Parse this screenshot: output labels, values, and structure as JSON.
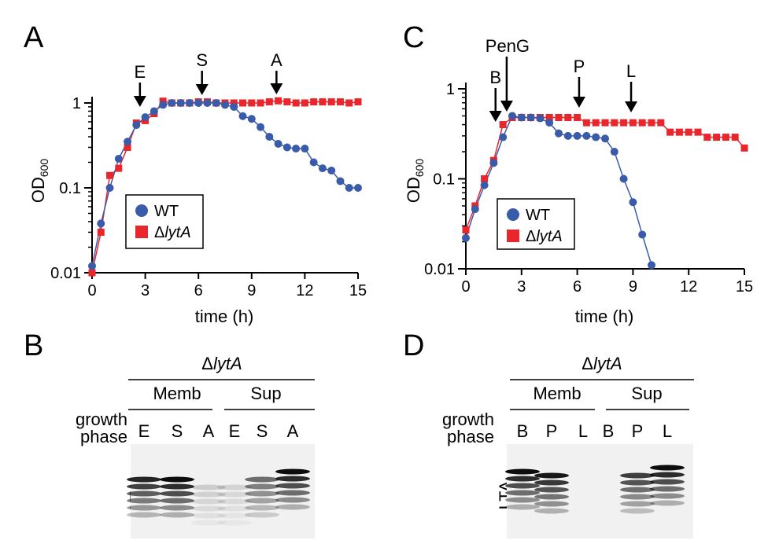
{
  "panels": {
    "A": "A",
    "B": "B",
    "C": "C",
    "D": "D"
  },
  "colors": {
    "wt": "#3a5ba9",
    "lyta": "#e8262b"
  },
  "chart_data": [
    {
      "panel": "A",
      "type": "line",
      "xlabel": "time (h)",
      "ylabel": "OD600",
      "ylabel_main": "OD",
      "ylabel_sub": "600",
      "yscale": "log",
      "xlim": [
        0,
        15
      ],
      "ylim": [
        0.01,
        1
      ],
      "xticks": [
        0,
        3,
        6,
        9,
        12,
        15
      ],
      "xtick_labels": [
        "0",
        "3",
        "6",
        "9",
        "12",
        "15"
      ],
      "yticks": [
        0.01,
        0.1,
        1
      ],
      "ytick_labels": [
        "0.01",
        "0.1",
        "1"
      ],
      "legend": {
        "position": "lower-center",
        "entries": [
          "WT",
          "ΔlytA"
        ]
      },
      "series": [
        {
          "name": "WT",
          "marker": "circle",
          "color": "#3a5ba9",
          "x": [
            0,
            0.5,
            1,
            1.5,
            2,
            2.5,
            3,
            3.5,
            4,
            4.5,
            5,
            5.5,
            6,
            6.5,
            7,
            7.5,
            8,
            8.5,
            9,
            9.5,
            10,
            10.5,
            11,
            11.5,
            12,
            12.5,
            13,
            13.5,
            14,
            14.5,
            15
          ],
          "values": [
            0.012,
            0.038,
            0.1,
            0.22,
            0.35,
            0.55,
            0.68,
            0.8,
            0.95,
            1.0,
            1.0,
            1.0,
            1.0,
            1.0,
            1.0,
            0.95,
            0.9,
            0.7,
            0.65,
            0.52,
            0.4,
            0.33,
            0.3,
            0.29,
            0.29,
            0.2,
            0.17,
            0.16,
            0.12,
            0.1,
            0.1
          ]
        },
        {
          "name": "ΔlytA",
          "marker": "square",
          "color": "#e8262b",
          "x": [
            0,
            0.5,
            1,
            1.5,
            2,
            2.5,
            3,
            3.5,
            4,
            4.5,
            5,
            5.5,
            6,
            6.5,
            7,
            7.5,
            8,
            8.5,
            9,
            9.5,
            10,
            10.5,
            11,
            11.5,
            12,
            12.5,
            13,
            13.5,
            14,
            14.5,
            15
          ],
          "values": [
            0.01,
            0.03,
            0.14,
            0.17,
            0.3,
            0.58,
            0.62,
            0.75,
            1.05,
            1.0,
            1.0,
            1.0,
            1.03,
            1.03,
            1.0,
            1.0,
            1.0,
            1.0,
            1.0,
            1.0,
            1.03,
            1.06,
            1.03,
            1.0,
            1.0,
            1.03,
            1.03,
            1.03,
            1.03,
            1.0,
            1.03
          ]
        }
      ],
      "annotations": [
        {
          "label": "E",
          "x": 2.7
        },
        {
          "label": "S",
          "x": 6.2
        },
        {
          "label": "A",
          "x": 10.4
        }
      ]
    },
    {
      "panel": "C",
      "type": "line",
      "xlabel": "time (h)",
      "ylabel": "OD600",
      "ylabel_main": "OD",
      "ylabel_sub": "600",
      "yscale": "log",
      "xlim": [
        0,
        15
      ],
      "ylim": [
        0.01,
        1
      ],
      "xticks": [
        0,
        3,
        6,
        9,
        12,
        15
      ],
      "xtick_labels": [
        "0",
        "3",
        "6",
        "9",
        "12",
        "15"
      ],
      "yticks": [
        0.01,
        0.1,
        1
      ],
      "ytick_labels": [
        "0.01",
        "0.1",
        "1"
      ],
      "legend": {
        "position": "lower-center",
        "entries": [
          "WT",
          "ΔlytA"
        ]
      },
      "series": [
        {
          "name": "WT",
          "marker": "circle",
          "color": "#3a5ba9",
          "x": [
            0,
            0.5,
            1,
            1.5,
            2,
            2.5,
            3,
            3.5,
            4,
            4.5,
            5,
            5.5,
            6,
            6.5,
            7,
            7.5,
            8,
            8.5,
            9,
            9.5,
            10
          ],
          "values": [
            0.022,
            0.046,
            0.085,
            0.15,
            0.29,
            0.5,
            0.48,
            0.48,
            0.47,
            0.42,
            0.32,
            0.3,
            0.3,
            0.3,
            0.29,
            0.28,
            0.2,
            0.1,
            0.055,
            0.024,
            0.011
          ]
        },
        {
          "name": "ΔlytA",
          "marker": "square",
          "color": "#e8262b",
          "x": [
            0,
            0.5,
            1,
            1.5,
            2,
            2.5,
            3,
            3.5,
            4,
            4.5,
            5,
            5.5,
            6,
            6.5,
            7,
            7.5,
            8,
            8.5,
            9,
            9.5,
            10,
            10.5,
            11,
            11.5,
            12,
            12.5,
            13,
            13.5,
            14,
            14.5,
            15
          ],
          "values": [
            0.027,
            0.05,
            0.1,
            0.16,
            0.4,
            0.48,
            0.48,
            0.48,
            0.48,
            0.48,
            0.48,
            0.48,
            0.48,
            0.42,
            0.42,
            0.42,
            0.42,
            0.42,
            0.42,
            0.42,
            0.42,
            0.42,
            0.33,
            0.33,
            0.33,
            0.33,
            0.29,
            0.29,
            0.29,
            0.29,
            0.22
          ]
        }
      ],
      "annotations": [
        {
          "label": "B",
          "x": 1.6
        },
        {
          "label": "PenG",
          "x": 2.2
        },
        {
          "label": "P",
          "x": 6.1
        },
        {
          "label": "L",
          "x": 8.9
        }
      ]
    }
  ],
  "blots": [
    {
      "panel": "B",
      "strain": "ΔlytA",
      "strain_prefix": "Δ",
      "strain_name": "lytA",
      "groups": [
        "Memb",
        "Sup"
      ],
      "row_label_1": "growth",
      "row_label_2": "phase",
      "lanes": [
        "E",
        "S",
        "A",
        "E",
        "S",
        "A"
      ],
      "band_label": "LTA",
      "intensity": [
        0.85,
        0.95,
        0.15,
        0.12,
        0.55,
        0.95
      ]
    },
    {
      "panel": "D",
      "strain": "ΔlytA",
      "strain_prefix": "Δ",
      "strain_name": "lytA",
      "groups": [
        "Memb",
        "Sup"
      ],
      "row_label_1": "growth",
      "row_label_2": "phase",
      "lanes": [
        "B",
        "P",
        "L",
        "B",
        "P",
        "L"
      ],
      "band_label": "LTA",
      "intensity": [
        0.95,
        0.9,
        0.0,
        0.0,
        0.75,
        0.95
      ]
    }
  ]
}
